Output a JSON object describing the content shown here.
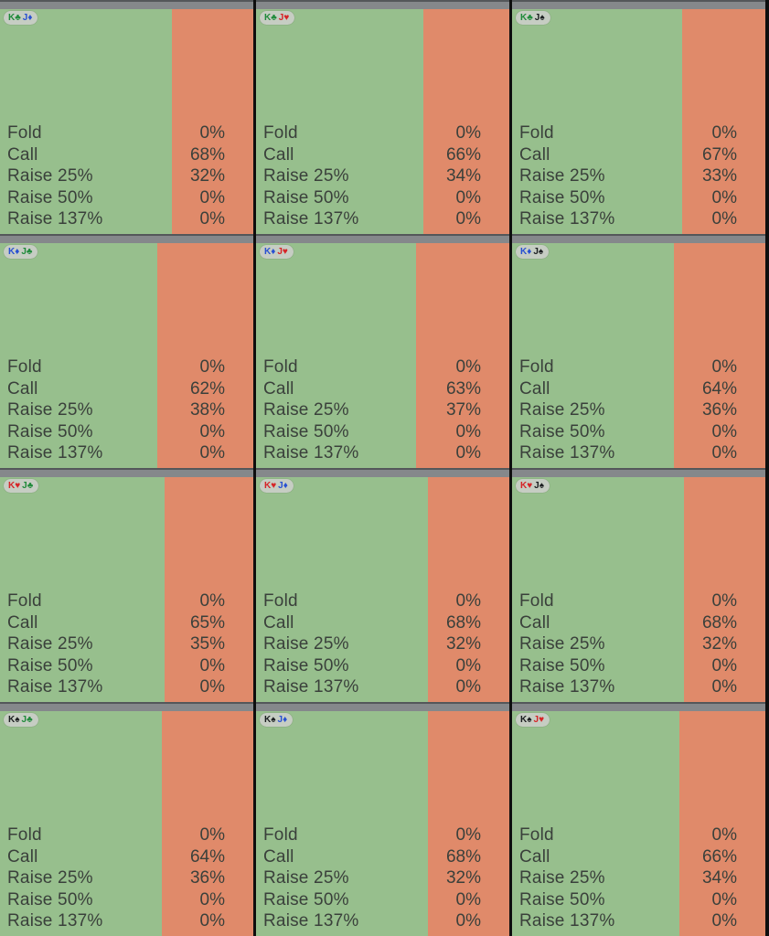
{
  "app": {
    "view": "combo-strategy-grid",
    "hand_group": "KJ offsuit"
  },
  "grid": {
    "rows": 4,
    "cols": 3,
    "action_labels": [
      "Fold",
      "Call",
      "Raise 25%",
      "Raise 50%",
      "Raise 137%"
    ],
    "cells": [
      {
        "cards": [
          {
            "rank": "K",
            "suit": "club"
          },
          {
            "rank": "J",
            "suit": "diamond"
          }
        ],
        "values_pct": [
          0,
          68,
          32,
          0,
          0
        ]
      },
      {
        "cards": [
          {
            "rank": "K",
            "suit": "club"
          },
          {
            "rank": "J",
            "suit": "heart"
          }
        ],
        "values_pct": [
          0,
          66,
          34,
          0,
          0
        ]
      },
      {
        "cards": [
          {
            "rank": "K",
            "suit": "club"
          },
          {
            "rank": "J",
            "suit": "spade"
          }
        ],
        "values_pct": [
          0,
          67,
          33,
          0,
          0
        ]
      },
      {
        "cards": [
          {
            "rank": "K",
            "suit": "diamond"
          },
          {
            "rank": "J",
            "suit": "club"
          }
        ],
        "values_pct": [
          0,
          62,
          38,
          0,
          0
        ]
      },
      {
        "cards": [
          {
            "rank": "K",
            "suit": "diamond"
          },
          {
            "rank": "J",
            "suit": "heart"
          }
        ],
        "values_pct": [
          0,
          63,
          37,
          0,
          0
        ]
      },
      {
        "cards": [
          {
            "rank": "K",
            "suit": "diamond"
          },
          {
            "rank": "J",
            "suit": "spade"
          }
        ],
        "values_pct": [
          0,
          64,
          36,
          0,
          0
        ]
      },
      {
        "cards": [
          {
            "rank": "K",
            "suit": "heart"
          },
          {
            "rank": "J",
            "suit": "club"
          }
        ],
        "values_pct": [
          0,
          65,
          35,
          0,
          0
        ]
      },
      {
        "cards": [
          {
            "rank": "K",
            "suit": "heart"
          },
          {
            "rank": "J",
            "suit": "diamond"
          }
        ],
        "values_pct": [
          0,
          68,
          32,
          0,
          0
        ]
      },
      {
        "cards": [
          {
            "rank": "K",
            "suit": "heart"
          },
          {
            "rank": "J",
            "suit": "spade"
          }
        ],
        "values_pct": [
          0,
          68,
          32,
          0,
          0
        ]
      },
      {
        "cards": [
          {
            "rank": "K",
            "suit": "spade"
          },
          {
            "rank": "J",
            "suit": "club"
          }
        ],
        "values_pct": [
          0,
          64,
          36,
          0,
          0
        ]
      },
      {
        "cards": [
          {
            "rank": "K",
            "suit": "spade"
          },
          {
            "rank": "J",
            "suit": "diamond"
          }
        ],
        "values_pct": [
          0,
          68,
          32,
          0,
          0
        ]
      },
      {
        "cards": [
          {
            "rank": "K",
            "suit": "spade"
          },
          {
            "rank": "J",
            "suit": "heart"
          }
        ],
        "values_pct": [
          0,
          66,
          34,
          0,
          0
        ]
      }
    ]
  },
  "suit_glyphs": {
    "spade": "♠",
    "heart": "♥",
    "diamond": "♦",
    "club": "♣"
  },
  "colors": {
    "call_green": "#97bf8d",
    "raise_salmon": "#e08a6a",
    "header_gray": "#85888b",
    "separator_dark": "#0e0e0e",
    "pill_bg": "#c6cdc3",
    "text_dark": "#3a403b",
    "suit_spade": "#1a1d1f",
    "suit_heart": "#d62427",
    "suit_diamond": "#2850d2",
    "suit_club": "#1f8a3a"
  }
}
